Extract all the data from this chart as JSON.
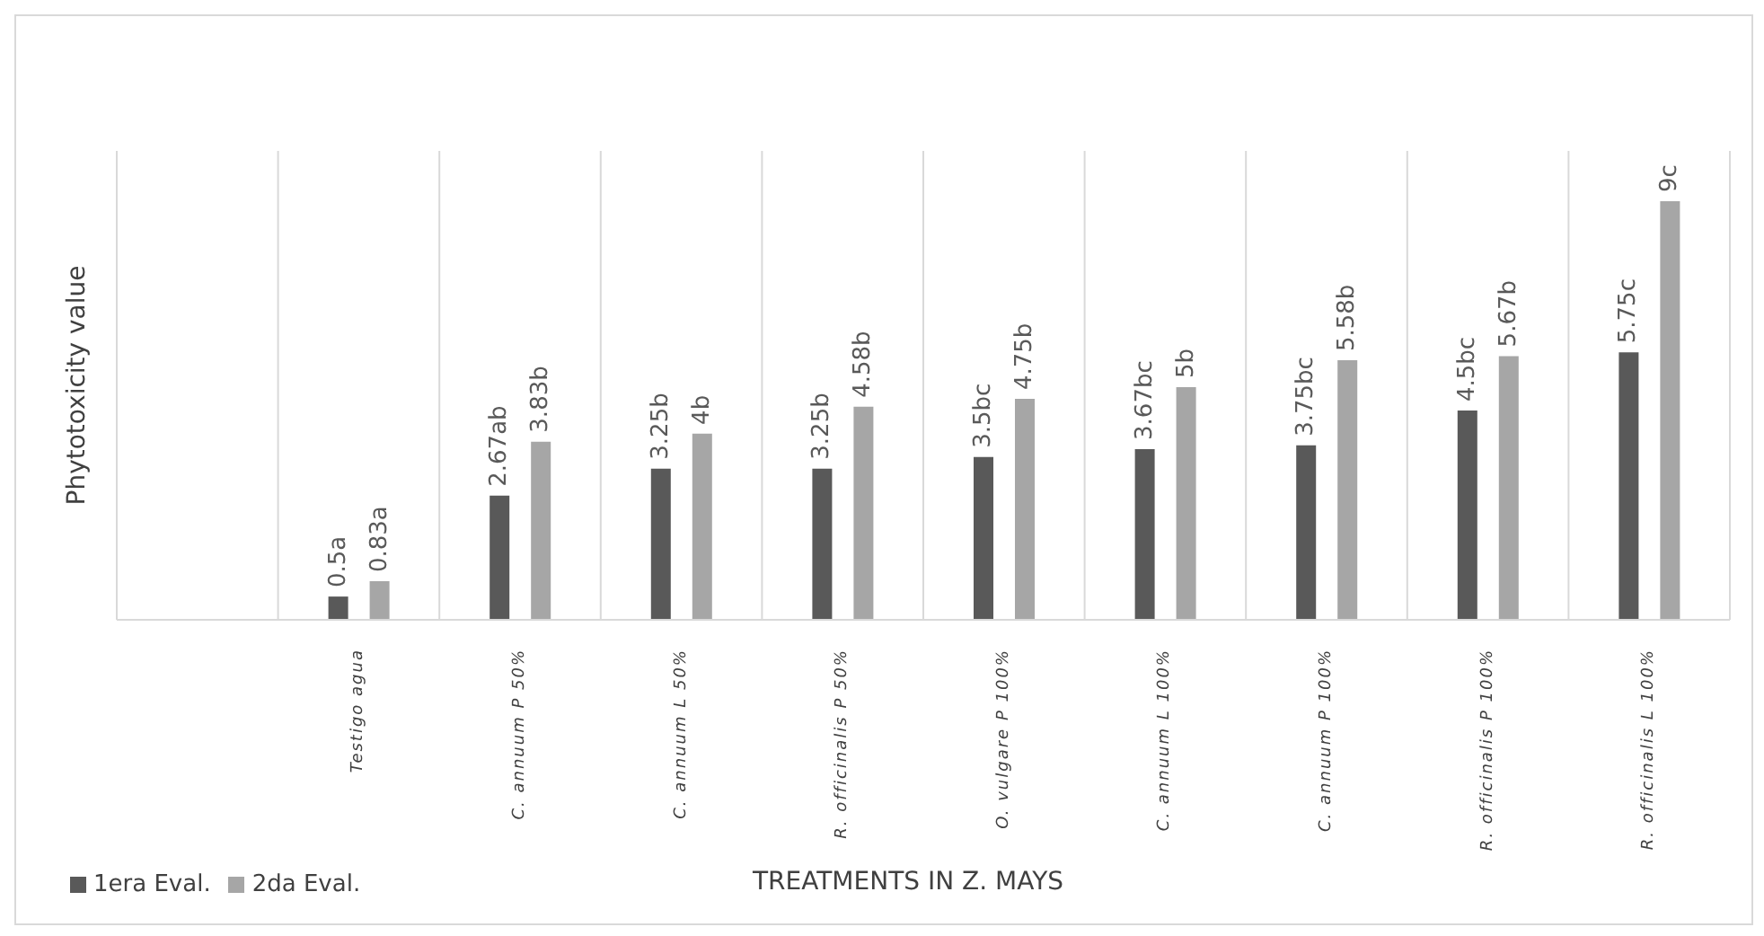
{
  "chart_data": {
    "type": "bar",
    "ylabel": "Phytotoxicity value",
    "xlabel": "TREATMENTS IN Z. MAYS",
    "categories": [
      null,
      "Testigo  agua",
      "C. annuum P 50%",
      "C. annuum L 50%",
      "R. officinalis P 50%",
      "O. vulgare P 100%",
      "C. annuum L 100%",
      "C. annuum P 100%",
      "R. officinalis P 100%",
      "R. officinalis L 100%"
    ],
    "series": [
      {
        "name": "1era Eval.",
        "color": "#595959",
        "values": [
          null,
          0.5,
          2.67,
          3.25,
          3.25,
          3.5,
          3.67,
          3.75,
          4.5,
          5.75
        ],
        "value_labels": [
          null,
          "0.5a",
          "2.67ab",
          "3.25b",
          "3.25b",
          "3.5bc",
          "3.67bc",
          "3.75bc",
          "4.5bc",
          "5.75c"
        ]
      },
      {
        "name": "2da Eval.",
        "color": "#a6a6a6",
        "values": [
          null,
          0.83,
          3.83,
          4,
          4.58,
          4.75,
          5,
          5.58,
          5.67,
          9
        ],
        "value_labels": [
          null,
          "0.83a",
          "3.83b",
          "4b",
          "4.58b",
          "4.75b",
          "5b",
          "5.58b",
          "5.67b",
          "9c"
        ]
      }
    ],
    "grid": "x",
    "legend": "bottom left"
  }
}
